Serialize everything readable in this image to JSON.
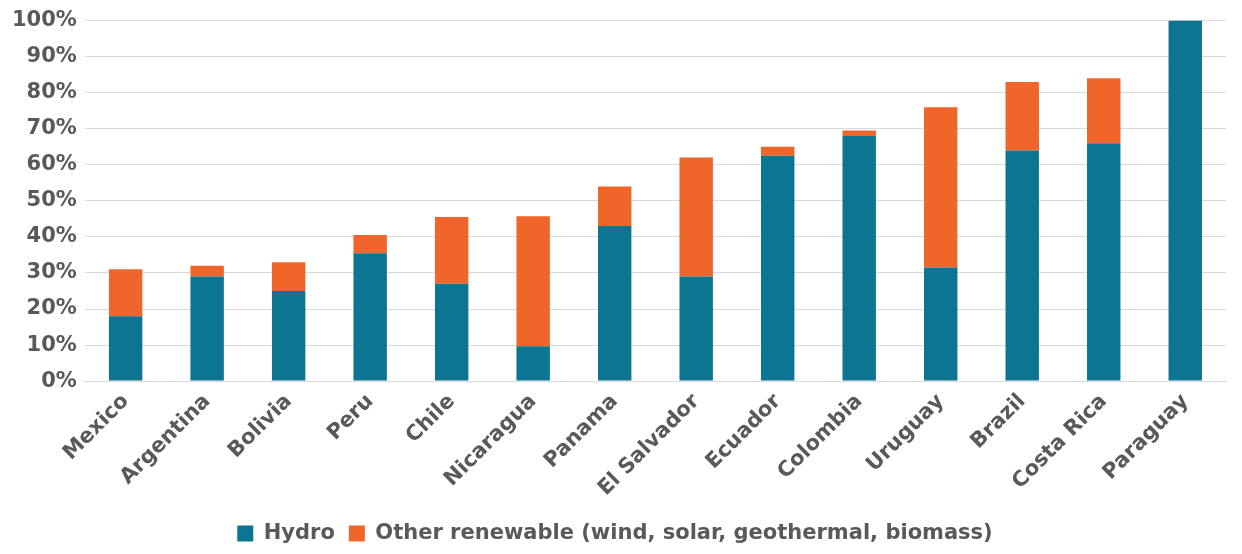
{
  "chart_data": {
    "type": "bar",
    "stacked": true,
    "categories": [
      "Mexico",
      "Argentina",
      "Bolivia",
      "Peru",
      "Chile",
      "Nicaragua",
      "Panama",
      "El Salvador",
      "Ecuador",
      "Colombia",
      "Uruguay",
      "Brazil",
      "Costa Rica",
      "Paraguay"
    ],
    "series": [
      {
        "name": "Hydro",
        "color": "#0c7591",
        "values": [
          18,
          29,
          25,
          35.5,
          27,
          9.7,
          43,
          29,
          62.5,
          68,
          31.5,
          64,
          66,
          100
        ]
      },
      {
        "name": "Other renewable (wind, solar, geothermal, biomass)",
        "color": "#f0662a",
        "values": [
          13,
          3,
          8,
          5,
          18.5,
          36,
          11,
          33,
          2.5,
          1.5,
          44.5,
          19,
          18,
          0
        ]
      }
    ],
    "ylim": [
      0,
      100
    ],
    "yticks": [
      {
        "value": 0,
        "label": "0%"
      },
      {
        "value": 10,
        "label": "10%"
      },
      {
        "value": 20,
        "label": "20%"
      },
      {
        "value": 30,
        "label": "30%"
      },
      {
        "value": 40,
        "label": "40%"
      },
      {
        "value": 50,
        "label": "50%"
      },
      {
        "value": 60,
        "label": "60%"
      },
      {
        "value": 70,
        "label": "70%"
      },
      {
        "value": 80,
        "label": "80%"
      },
      {
        "value": 90,
        "label": "90%"
      },
      {
        "value": 100,
        "label": "100%"
      }
    ],
    "grid": "y",
    "legend": "bottom"
  }
}
